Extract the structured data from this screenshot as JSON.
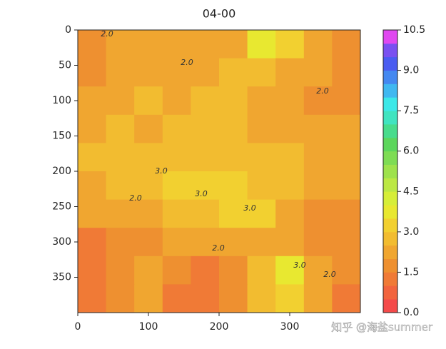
{
  "chart_data": {
    "type": "heatmap",
    "title": "04-00",
    "xlim": [
      0,
      400
    ],
    "ylim": [
      400,
      0
    ],
    "xticks": [
      0,
      100,
      200,
      300
    ],
    "yticks": [
      0,
      50,
      100,
      150,
      200,
      250,
      300,
      350
    ],
    "values": [
      [
        1.8,
        2.0,
        2.1,
        2.0,
        2.2,
        2.4,
        3.6,
        3.4,
        2.2,
        1.8
      ],
      [
        1.6,
        2.0,
        2.4,
        2.2,
        2.4,
        2.6,
        2.6,
        2.4,
        2.0,
        1.6
      ],
      [
        2.2,
        2.4,
        2.6,
        2.4,
        2.6,
        2.5,
        2.3,
        2.2,
        1.9,
        1.7
      ],
      [
        2.4,
        2.6,
        2.4,
        2.6,
        2.8,
        2.6,
        2.4,
        2.3,
        2.2,
        2.0
      ],
      [
        2.6,
        2.8,
        2.8,
        2.8,
        2.8,
        2.7,
        2.6,
        2.5,
        2.4,
        2.3
      ],
      [
        2.4,
        2.6,
        2.8,
        3.2,
        3.4,
        3.0,
        2.8,
        2.6,
        2.4,
        2.2
      ],
      [
        2.0,
        2.2,
        2.2,
        2.6,
        2.6,
        3.0,
        3.2,
        2.4,
        1.8,
        1.6
      ],
      [
        1.4,
        1.6,
        1.8,
        2.0,
        2.0,
        2.2,
        2.4,
        2.0,
        1.8,
        1.6
      ],
      [
        1.2,
        1.8,
        2.0,
        1.6,
        1.4,
        1.8,
        2.8,
        3.6,
        2.4,
        1.6
      ],
      [
        1.2,
        1.6,
        2.0,
        1.4,
        1.2,
        1.6,
        2.6,
        3.2,
        2.2,
        1.4
      ]
    ],
    "colormap": [
      "#f44a4a",
      "#f2643e",
      "#f07a36",
      "#ee9030",
      "#f0a630",
      "#f2bc30",
      "#f2d030",
      "#e8e830",
      "#d6ee38",
      "#bce844",
      "#9ee24c",
      "#7edc54",
      "#5cd65c",
      "#48dc8c",
      "#40e4c0",
      "#3ce8e8",
      "#40b8f0",
      "#4488f0",
      "#4a5cf0",
      "#7a50f0",
      "#e048f0"
    ],
    "colorbar": {
      "lim": [
        0,
        10.5
      ],
      "ticks": [
        {
          "value": 0,
          "label": "0.0"
        },
        {
          "value": 1.5,
          "label": "1.5"
        },
        {
          "value": 3,
          "label": "3.0"
        },
        {
          "value": 4.5,
          "label": "4.5"
        },
        {
          "value": 6,
          "label": "6.0"
        },
        {
          "value": 7.5,
          "label": "7.5"
        },
        {
          "value": 9,
          "label": "9.0"
        },
        {
          "value": 10.5,
          "label": "10.5"
        }
      ]
    },
    "contour_labels": [
      "2.0",
      "2.0",
      "2.0",
      "3.0",
      "3.0",
      "3.0",
      "2.0",
      "2.0",
      "3.0",
      "2.0"
    ],
    "watermark": "知乎 @海盐summer"
  }
}
